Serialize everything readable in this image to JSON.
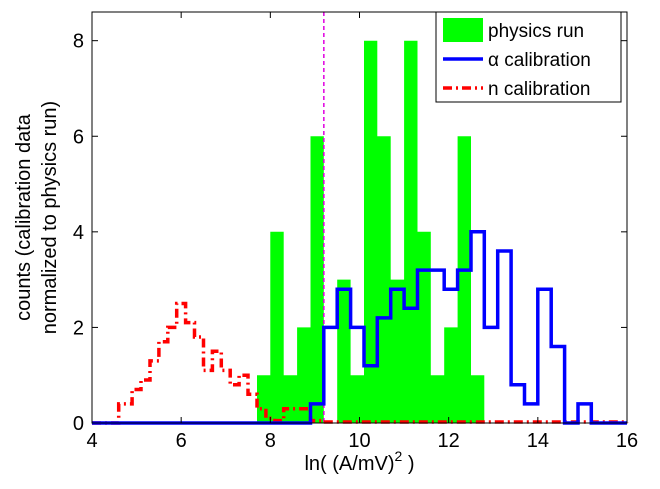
{
  "chart_data": {
    "type": "histogram",
    "xlabel": "ln( (A/mV)",
    "xlabel_sup": "2",
    "xlabel_end": " )",
    "ylabel_line1": "counts (calibration data",
    "ylabel_line2": "normalized to physics run)",
    "xlim": [
      4,
      16
    ],
    "ylim": [
      0,
      8.6
    ],
    "xticks": [
      "4",
      "6",
      "8",
      "10",
      "12",
      "14",
      "16"
    ],
    "xtick_values": [
      4,
      6,
      8,
      10,
      12,
      14,
      16
    ],
    "yticks": [
      "0",
      "2",
      "4",
      "6",
      "8"
    ],
    "ytick_values": [
      0,
      2,
      4,
      6,
      8
    ],
    "threshold_x": 9.2,
    "legend_position": "top-right",
    "series": [
      {
        "name": "physics run",
        "style": "filled-step",
        "color": "#00ff00",
        "x_edges": [
          7.7,
          8.0,
          8.3,
          8.6,
          8.9,
          9.2,
          9.5,
          9.8,
          10.1,
          10.4,
          10.7,
          11.0,
          11.3,
          11.6,
          11.9,
          12.2,
          12.5,
          12.8,
          13.1
        ],
        "values": [
          1,
          4,
          1,
          2,
          6,
          0,
          3,
          1,
          8,
          6,
          3,
          8,
          4,
          1,
          2,
          6,
          1,
          0
        ]
      },
      {
        "name": "α calibration",
        "style": "step",
        "color": "#0000ff",
        "x_edges": [
          4.0,
          7.7,
          8.6,
          8.9,
          9.2,
          9.5,
          9.8,
          10.1,
          10.4,
          10.7,
          11.0,
          11.3,
          11.6,
          11.9,
          12.2,
          12.5,
          12.8,
          13.1,
          13.4,
          13.7,
          14.0,
          14.3,
          14.6,
          14.9,
          15.2,
          15.5,
          16.0
        ],
        "values": [
          0,
          0,
          0,
          0.4,
          2.0,
          2.8,
          2.0,
          1.2,
          2.2,
          2.8,
          2.4,
          3.2,
          3.2,
          2.8,
          3.2,
          4.0,
          2.0,
          3.6,
          0.8,
          0.4,
          2.8,
          1.6,
          0,
          0.4,
          0,
          0
        ]
      },
      {
        "name": "n calibration",
        "style": "dash-dot-step",
        "color": "#ff0000",
        "x_edges": [
          4.0,
          4.6,
          4.9,
          5.1,
          5.3,
          5.5,
          5.7,
          5.9,
          6.1,
          6.3,
          6.5,
          6.7,
          6.9,
          7.1,
          7.3,
          7.5,
          7.7,
          7.9,
          8.1,
          8.3,
          8.6,
          8.9,
          9.2,
          16.0
        ],
        "values": [
          0,
          0.4,
          0.7,
          0.9,
          1.3,
          1.7,
          2.0,
          2.5,
          2.1,
          1.8,
          1.1,
          1.5,
          1.1,
          0.8,
          1.0,
          0.6,
          0.3,
          0.1,
          0.05,
          0.3,
          0.3,
          0.05,
          0.02
        ]
      }
    ]
  }
}
